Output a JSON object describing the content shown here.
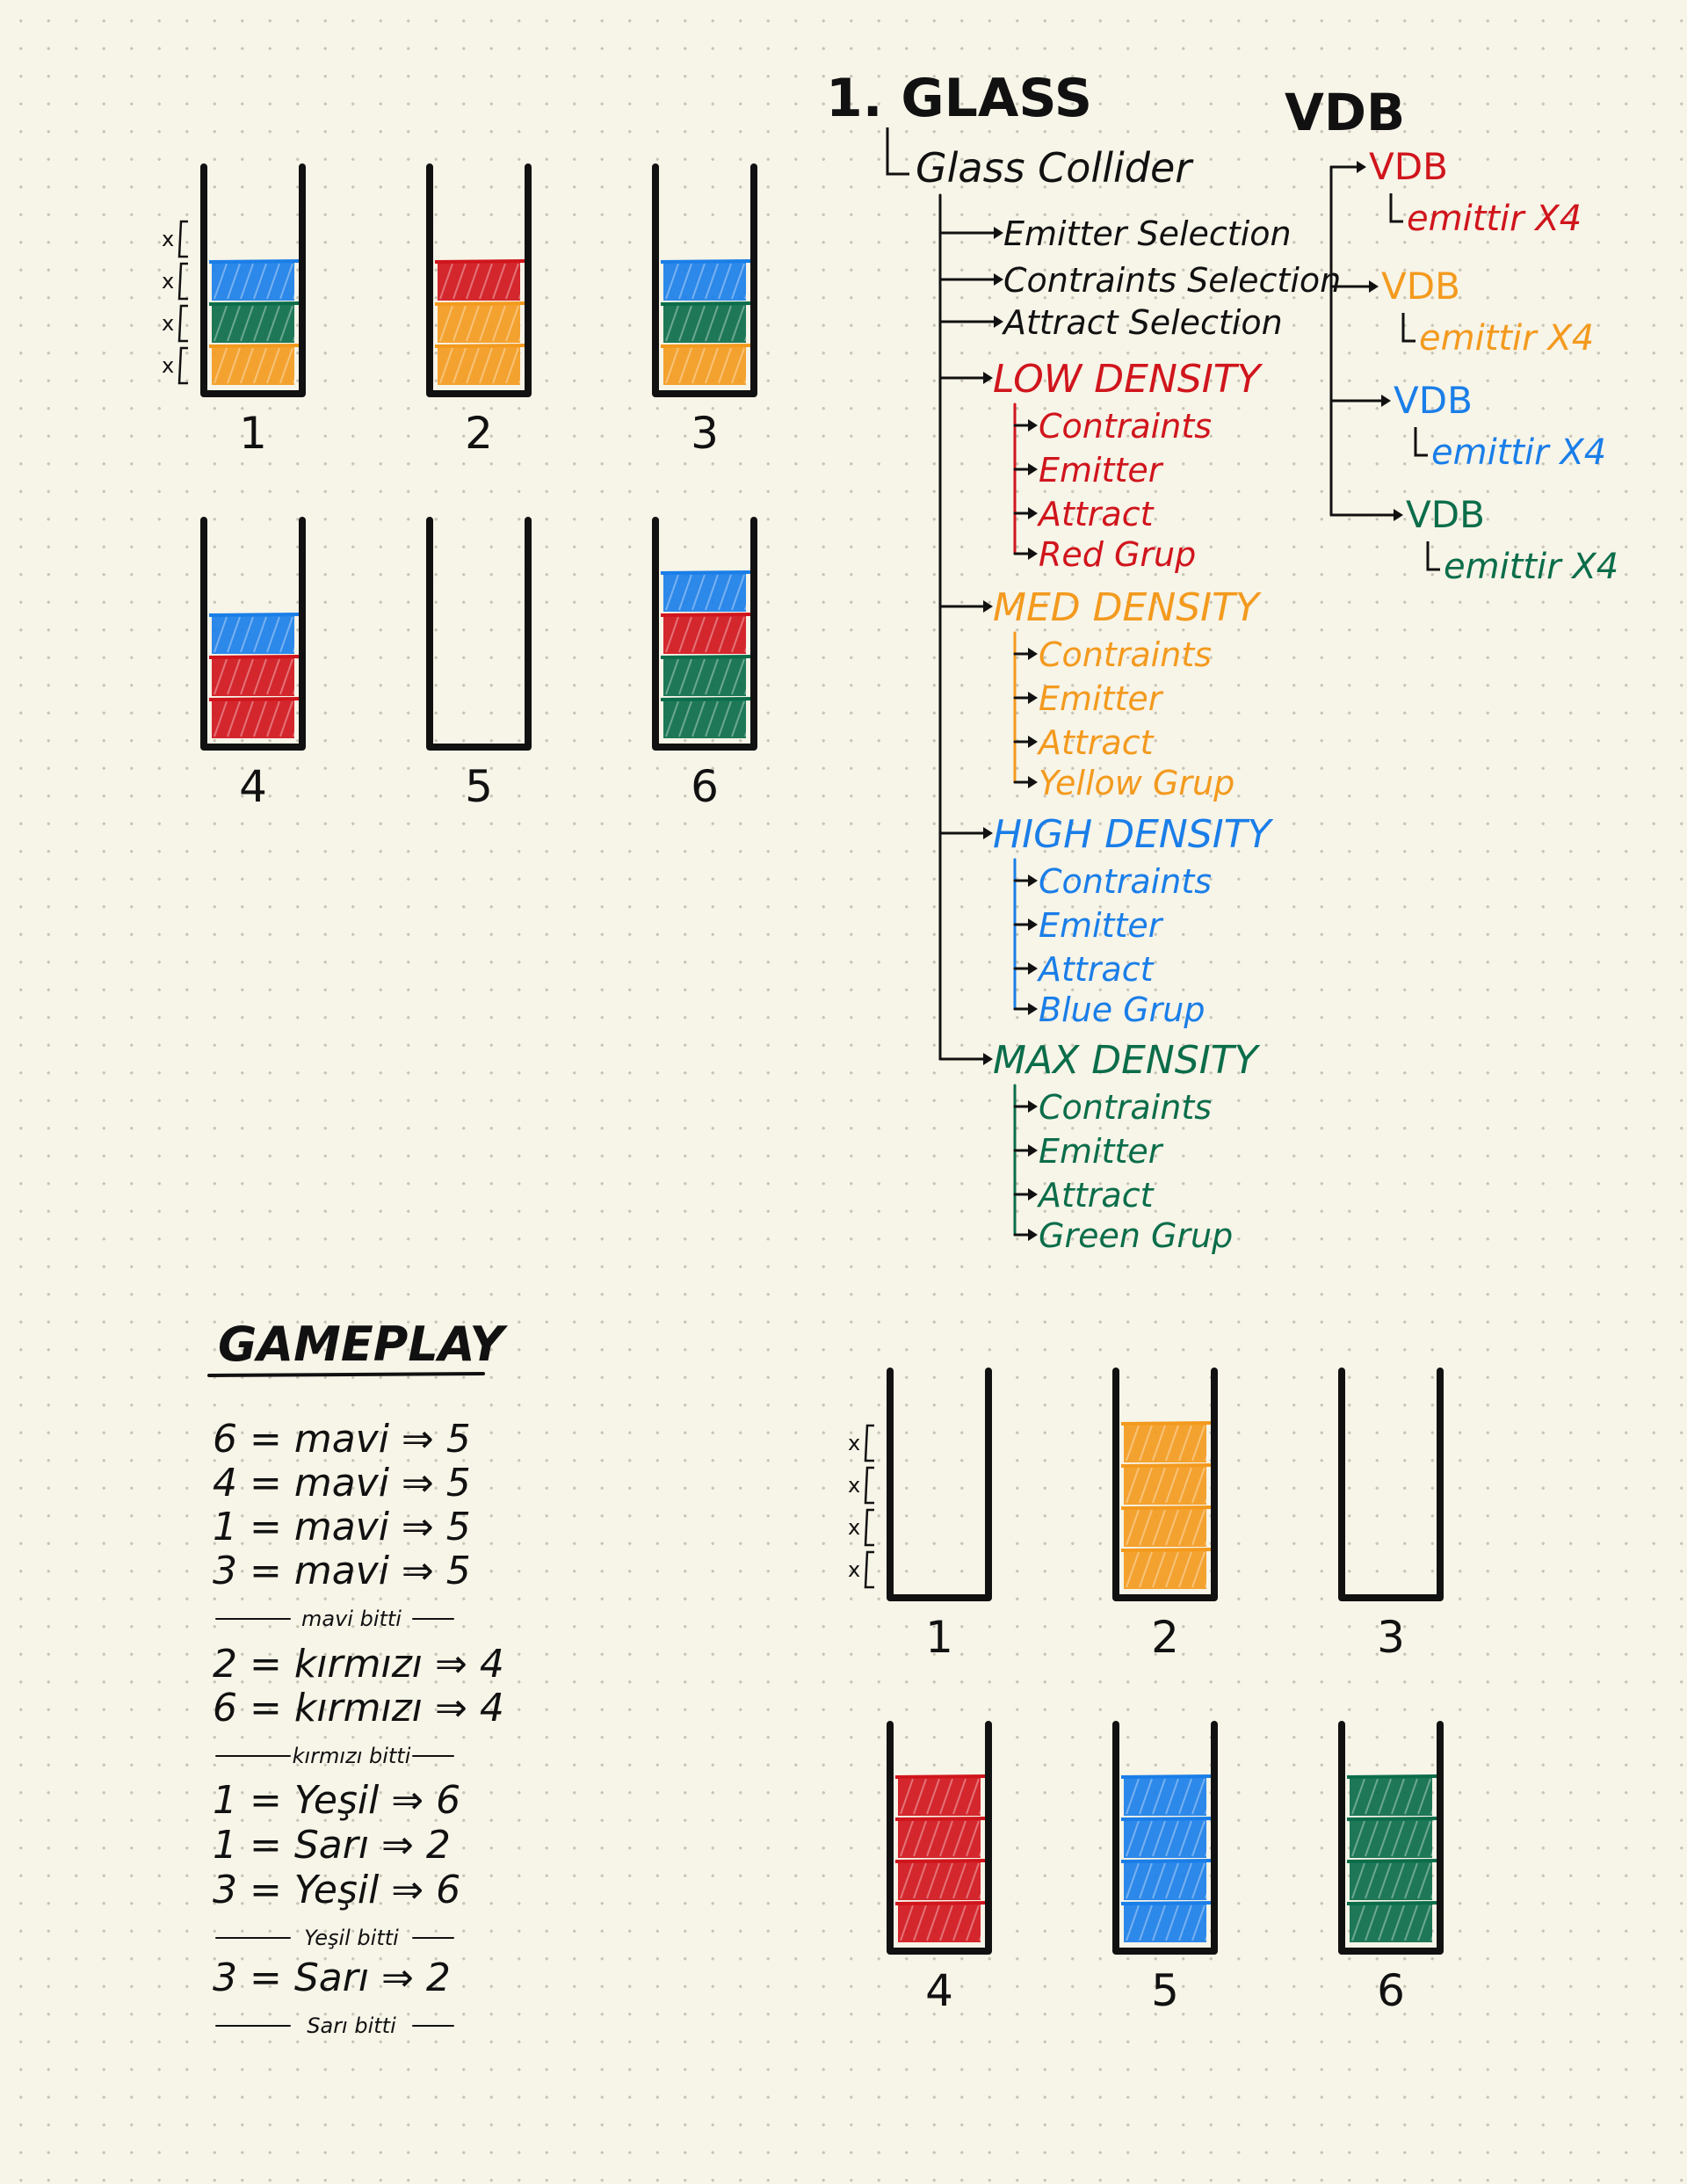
{
  "colors": {
    "ink": "#111111",
    "red": "#d0151c",
    "orange": "#f39a1e",
    "blue": "#1a7ee8",
    "green": "#0b6d4a"
  },
  "puzzle_start": {
    "glasses": [
      {
        "label": "1",
        "layers": [
          "orange",
          "green",
          "blue"
        ]
      },
      {
        "label": "2",
        "layers": [
          "orange",
          "orange",
          "red"
        ]
      },
      {
        "label": "3",
        "layers": [
          "orange",
          "green",
          "blue"
        ]
      },
      {
        "label": "4",
        "layers": [
          "red",
          "red",
          "blue"
        ]
      },
      {
        "label": "5",
        "layers": []
      },
      {
        "label": "6",
        "layers": [
          "green",
          "green",
          "red",
          "blue"
        ]
      }
    ],
    "layer_marks": [
      "x",
      "x",
      "x",
      "x"
    ]
  },
  "puzzle_end": {
    "glasses": [
      {
        "label": "1",
        "layers": []
      },
      {
        "label": "2",
        "layers": [
          "orange",
          "orange",
          "orange",
          "orange"
        ]
      },
      {
        "label": "3",
        "layers": []
      },
      {
        "label": "4",
        "layers": [
          "red",
          "red",
          "red",
          "red"
        ]
      },
      {
        "label": "5",
        "layers": [
          "blue",
          "blue",
          "blue",
          "blue"
        ]
      },
      {
        "label": "6",
        "layers": [
          "green",
          "green",
          "green",
          "green"
        ]
      }
    ],
    "layer_marks": [
      "x",
      "x",
      "x",
      "x"
    ]
  },
  "glass_tree": {
    "title": "1. GLASS",
    "collider": "Glass Collider",
    "selections": [
      "Emitter Selection",
      "Contraints Selection",
      "Attract Selection"
    ],
    "densities": [
      {
        "name": "LOW DENSITY",
        "color": "red",
        "items": [
          "Contraints",
          "Emitter",
          "Attract",
          "Red Grup"
        ]
      },
      {
        "name": "MED DENSITY",
        "color": "orange",
        "items": [
          "Contraints",
          "Emitter",
          "Attract",
          "Yellow Grup"
        ]
      },
      {
        "name": "HIGH DENSITY",
        "color": "blue",
        "items": [
          "Contraints",
          "Emitter",
          "Attract",
          "Blue Grup"
        ]
      },
      {
        "name": "MAX DENSITY",
        "color": "green",
        "items": [
          "Contraints",
          "Emitter",
          "Attract",
          "Green Grup"
        ]
      }
    ]
  },
  "vdb_tree": {
    "title": "VDB",
    "entries": [
      {
        "name": "VDB",
        "child": "emittir X4",
        "color": "red"
      },
      {
        "name": "VDB",
        "child": "emittir X4",
        "color": "orange"
      },
      {
        "name": "VDB",
        "child": "emittir X4",
        "color": "blue"
      },
      {
        "name": "VDB",
        "child": "emittir X4",
        "color": "green"
      }
    ]
  },
  "gameplay": {
    "title": "GAMEPLAY",
    "groups": [
      {
        "moves": [
          "6 = mavi ⇒ 5",
          "4 = mavi ⇒ 5",
          "1 = mavi ⇒ 5",
          "3 = mavi ⇒ 5"
        ],
        "done": "mavi bitti"
      },
      {
        "moves": [
          "2 = kırmızı ⇒ 4",
          "6 = kırmızı ⇒ 4"
        ],
        "done": "kırmızı bitti"
      },
      {
        "moves": [
          "1 = Yeşil ⇒ 6",
          "1 = Sarı ⇒ 2",
          "3 = Yeşil ⇒ 6"
        ],
        "done": "Yeşil bitti"
      },
      {
        "moves": [
          "3 = Sarı ⇒ 2"
        ],
        "done": "Sarı bitti"
      }
    ]
  }
}
